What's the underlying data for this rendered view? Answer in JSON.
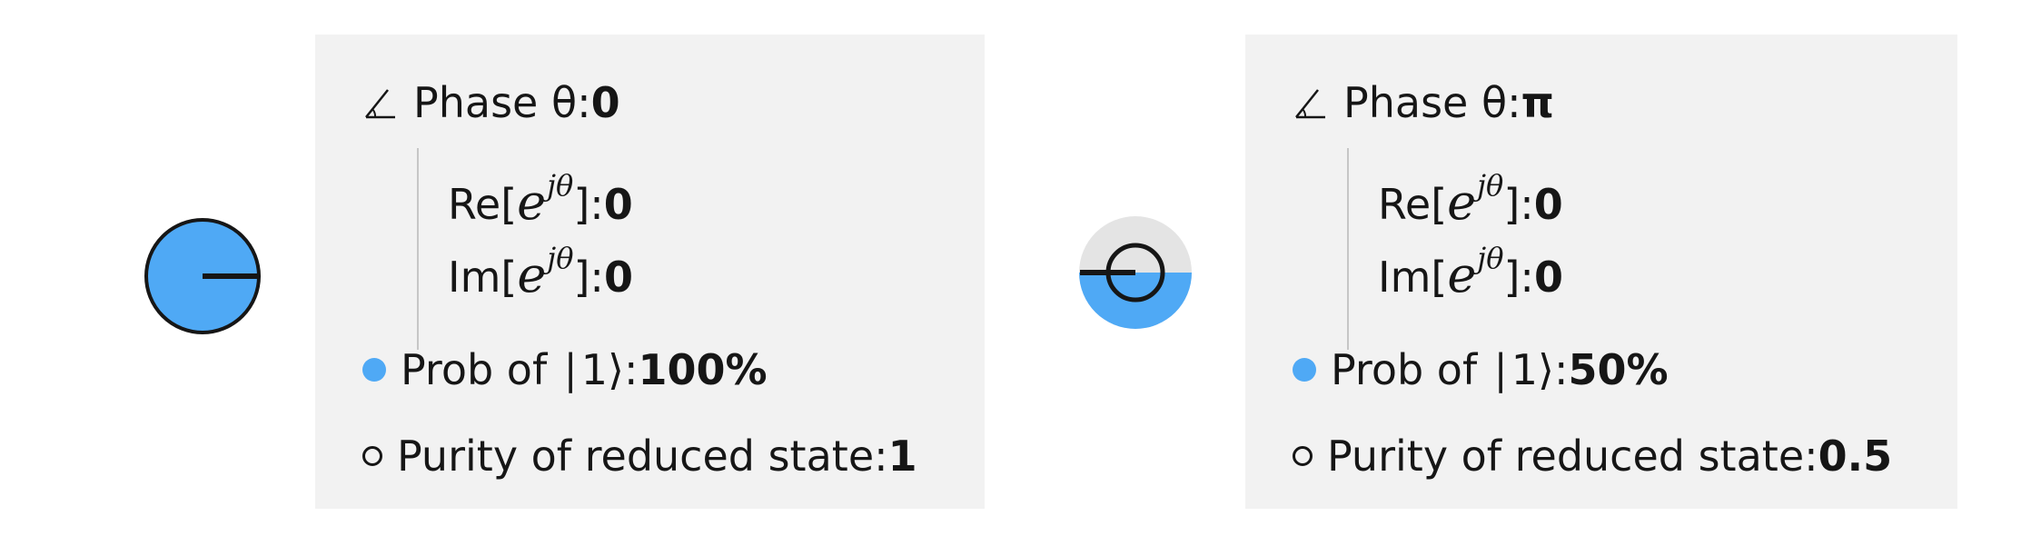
{
  "colors": {
    "accent": "#4fa9f5",
    "panel_bg": "#f2f2f2",
    "text": "#161616",
    "muted": "#c6c6c6",
    "disc_empty": "#e4e4e4"
  },
  "panels": [
    {
      "phase_label": "Phase θ: ",
      "phase_value": "0",
      "re_label_pre": "Re[",
      "re_math_base": "e",
      "re_math_exp": "jθ",
      "re_label_post": "]: ",
      "re_value": "0",
      "im_label_pre": "Im[",
      "im_math_base": "e",
      "im_math_exp": "jθ",
      "im_label_post": "]: ",
      "im_value": "0",
      "prob_label": "Prob of ∣1⟩: ",
      "prob_value": "100%",
      "prob_fraction": 1.0,
      "purity_label": "Purity of reduced state: ",
      "purity_value": "1",
      "icons": {
        "phase": "angle-icon",
        "prob": "filled-dot-icon",
        "purity": "ring-icon"
      }
    },
    {
      "phase_label": "Phase θ: ",
      "phase_value": "π",
      "re_label_pre": "Re[",
      "re_math_base": "e",
      "re_math_exp": "jθ",
      "re_label_post": "]: ",
      "re_value": "0",
      "im_label_pre": "Im[",
      "im_math_base": "e",
      "im_math_exp": "jθ",
      "im_label_post": "]: ",
      "im_value": "0",
      "prob_label": "Prob of ∣1⟩: ",
      "prob_value": "50%",
      "prob_fraction": 0.5,
      "purity_label": "Purity of reduced state: ",
      "purity_value": "0.5",
      "icons": {
        "phase": "angle-icon",
        "prob": "filled-dot-icon",
        "purity": "ring-icon"
      }
    }
  ]
}
